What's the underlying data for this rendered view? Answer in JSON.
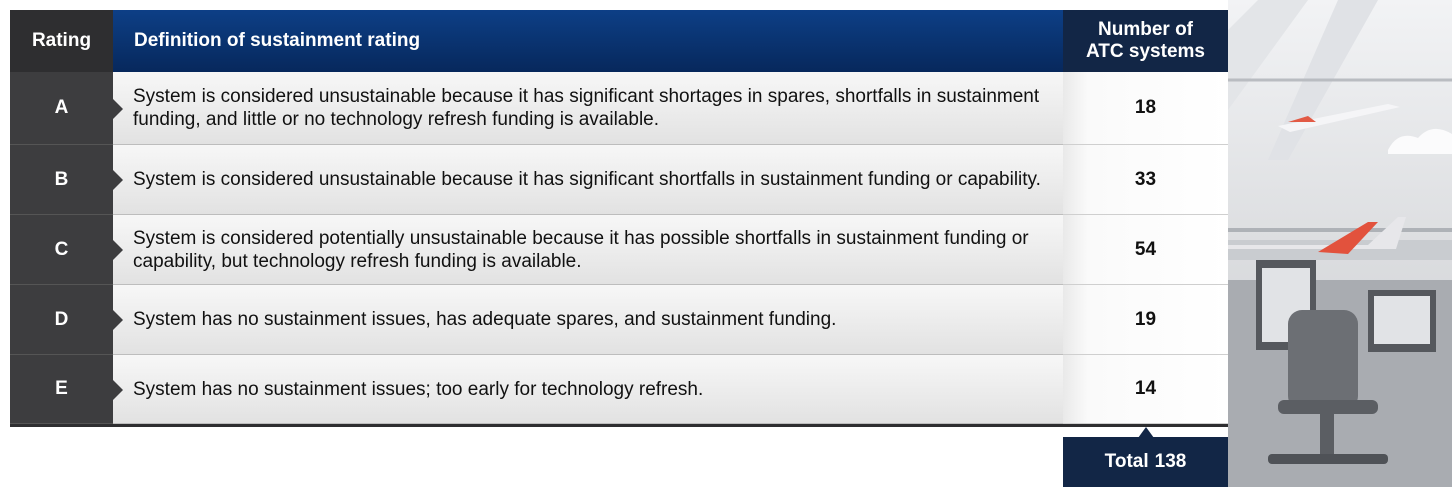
{
  "header": {
    "rating": "Rating",
    "definition": "Definition of sustainment rating",
    "count": "Number of ATC systems"
  },
  "rows": [
    {
      "rating": "A",
      "definition": "System is considered unsustainable because it has significant shortages in spares, shortfalls in sustainment funding, and little or no technology refresh funding is available.",
      "count": 18
    },
    {
      "rating": "B",
      "definition": "System is considered unsustainable because it has significant shortfalls in sustainment funding or capability.",
      "count": 33
    },
    {
      "rating": "C",
      "definition": "System is considered potentially unsustainable because it has possible shortfalls in sustainment funding or capability, but technology refresh funding is available.",
      "count": 54
    },
    {
      "rating": "D",
      "definition": "System has no sustainment issues, has adequate spares, and sustainment funding.",
      "count": 19
    },
    {
      "rating": "E",
      "definition": "System has no sustainment issues; too early for technology refresh.",
      "count": 14
    }
  ],
  "total": {
    "label": "Total",
    "value": 138
  }
}
